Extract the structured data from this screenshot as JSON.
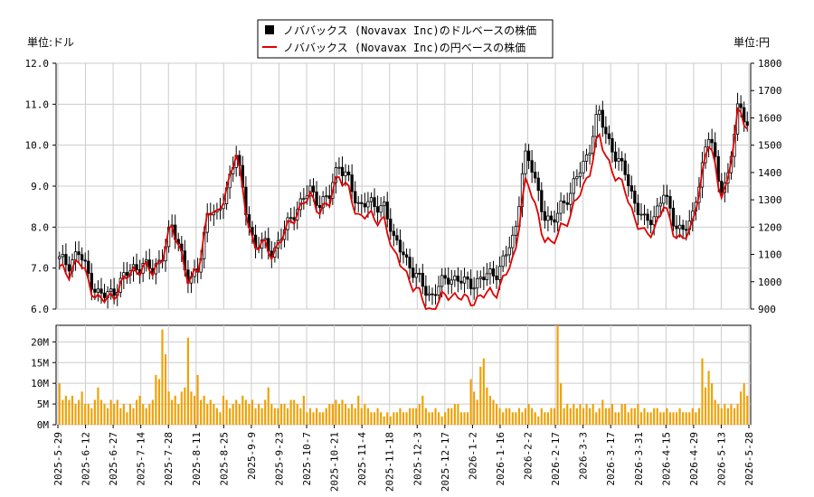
{
  "legend": {
    "usd_label": "ノババックス (Novavax Inc)のドルベースの株価",
    "jpy_label": "ノババックス (Novavax Inc)の円ベースの株価"
  },
  "units": {
    "left": "単位:ドル",
    "right": "単位:円"
  },
  "colors": {
    "candle": "#000000",
    "jpy_line": "#e00000",
    "volume": "#f0a000",
    "grid": "#cccccc",
    "axis": "#000000"
  },
  "chart_data": [
    {
      "type": "candlestick",
      "title": "",
      "ylabel": "単位:ドル",
      "ylim": [
        6.0,
        12.0
      ],
      "yticks": [
        "6.0",
        "7.0",
        "8.0",
        "9.0",
        "10.0",
        "11.0",
        "12.0"
      ],
      "xticks": [
        "2025-5-29",
        "2025-6-12",
        "2025-6-27",
        "2025-7-14",
        "2025-7-28",
        "2025-8-11",
        "2025-8-25",
        "2025-9-9",
        "2025-9-23",
        "2025-10-7",
        "2025-10-21",
        "2025-11-4",
        "2025-11-18",
        "2025-12-3",
        "2025-12-17",
        "2026-1-2",
        "2026-1-16",
        "2026-2-2",
        "2026-2-17",
        "2026-3-3",
        "2026-3-17",
        "2026-3-31",
        "2026-4-15",
        "2026-4-29",
        "2026-5-13",
        "2026-5-28"
      ],
      "grid": true,
      "series": [
        {
          "name": "ノババックス (Novavax Inc)のドルベースの株価",
          "close_anchors": [
            7.2,
            7.1,
            7.4,
            6.9,
            6.4,
            6.3,
            6.5,
            6.8,
            7.0,
            7.1,
            6.9,
            7.3,
            8.0,
            7.5,
            6.6,
            7.0,
            8.5,
            8.2,
            9.0,
            9.8,
            8.5,
            7.5,
            7.6,
            7.4,
            7.8,
            8.3,
            8.6,
            8.9,
            8.6,
            8.7,
            9.6,
            9.2,
            8.5,
            8.7,
            8.4,
            8.6,
            7.6,
            7.4,
            6.9,
            6.6,
            6.3,
            6.6,
            6.8,
            6.7,
            6.6,
            6.7,
            6.8,
            6.9,
            7.3,
            7.8,
            9.8,
            9.3,
            8.4,
            8.0,
            8.6,
            8.8,
            9.4,
            9.9,
            10.8,
            10.2,
            9.6,
            9.3,
            8.5,
            8.1,
            8.3,
            8.8,
            8.2,
            7.9,
            8.1,
            9.4,
            10.3,
            9.0,
            9.2,
            11.0,
            10.6
          ]
        }
      ]
    },
    {
      "type": "line",
      "ylabel": "単位:円",
      "ylim": [
        900,
        1800
      ],
      "yticks": [
        "900",
        "1000",
        "1100",
        "1200",
        "1300",
        "1400",
        "1500",
        "1600",
        "1700",
        "1800"
      ],
      "series": [
        {
          "name": "ノババックス (Novavax Inc)の円ベースの株価",
          "values_note_unit": "円"
        }
      ]
    },
    {
      "type": "bar",
      "ylabel": "",
      "ylim": [
        0,
        24
      ],
      "yticks": [
        "0M",
        "5M",
        "10M",
        "15M",
        "20M"
      ],
      "series": [
        {
          "name": "volume",
          "values": [
            10,
            6,
            7,
            6,
            7,
            5,
            6,
            8,
            5,
            5,
            4,
            6,
            9,
            6,
            5,
            4,
            6,
            5,
            6,
            4,
            5,
            3,
            5,
            4,
            6,
            7,
            5,
            4,
            5,
            6,
            12,
            11,
            23,
            17,
            8,
            6,
            7,
            5,
            8,
            9,
            21,
            8,
            7,
            12,
            6,
            7,
            5,
            6,
            5,
            4,
            3,
            7,
            6,
            4,
            5,
            6,
            5,
            7,
            6,
            5,
            6,
            4,
            5,
            4,
            6,
            9,
            5,
            4,
            4,
            5,
            5,
            4,
            6,
            6,
            5,
            4,
            7,
            3,
            4,
            3,
            4,
            3,
            3,
            4,
            5,
            5,
            6,
            5,
            6,
            5,
            4,
            5,
            4,
            7,
            4,
            5,
            4,
            3,
            3,
            4,
            3,
            2,
            3,
            2,
            3,
            3,
            4,
            3,
            3,
            4,
            4,
            4,
            5,
            7,
            4,
            3,
            3,
            4,
            3,
            2,
            3,
            4,
            4,
            5,
            5,
            3,
            3,
            3,
            11,
            8,
            6,
            14,
            16,
            9,
            7,
            6,
            5,
            4,
            3,
            4,
            4,
            3,
            3,
            4,
            3,
            4,
            5,
            4,
            3,
            2,
            4,
            3,
            3,
            4,
            4,
            24,
            10,
            4,
            5,
            4,
            5,
            4,
            5,
            4,
            5,
            4,
            5,
            3,
            4,
            6,
            4,
            4,
            5,
            3,
            3,
            5,
            5,
            3,
            4,
            4,
            5,
            3,
            4,
            3,
            3,
            4,
            4,
            3,
            3,
            4,
            3,
            3,
            3,
            4,
            3,
            3,
            3,
            4,
            3,
            4,
            16,
            9,
            13,
            10,
            6,
            5,
            4,
            5,
            4,
            5,
            4,
            5,
            8,
            10,
            7
          ]
        }
      ]
    }
  ]
}
